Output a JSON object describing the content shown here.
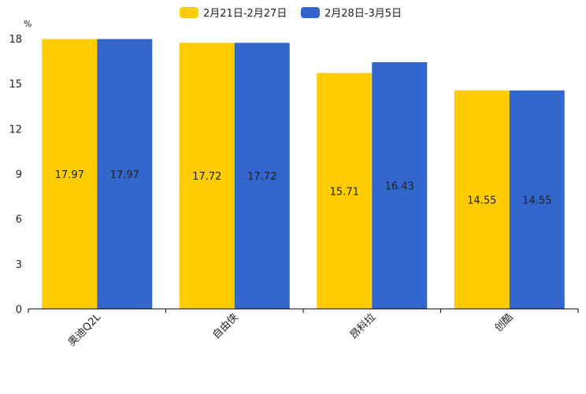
{
  "chart_data": {
    "type": "bar",
    "categories": [
      "奥迪Q2L",
      "自由侠",
      "昂科拉",
      "创酷"
    ],
    "series": [
      {
        "name": "2月21日-2月27日",
        "color": "#FFCC00",
        "values": [
          17.97,
          17.72,
          15.71,
          14.55
        ]
      },
      {
        "name": "2月28日-3月5日",
        "color": "#3366CC",
        "values": [
          17.97,
          17.72,
          16.43,
          14.55
        ]
      }
    ],
    "ylabel": "%",
    "ylim": [
      0,
      18
    ],
    "yticks": [
      0,
      3,
      6,
      9,
      12,
      15,
      18
    ],
    "legend": "top-center",
    "grid": false
  }
}
